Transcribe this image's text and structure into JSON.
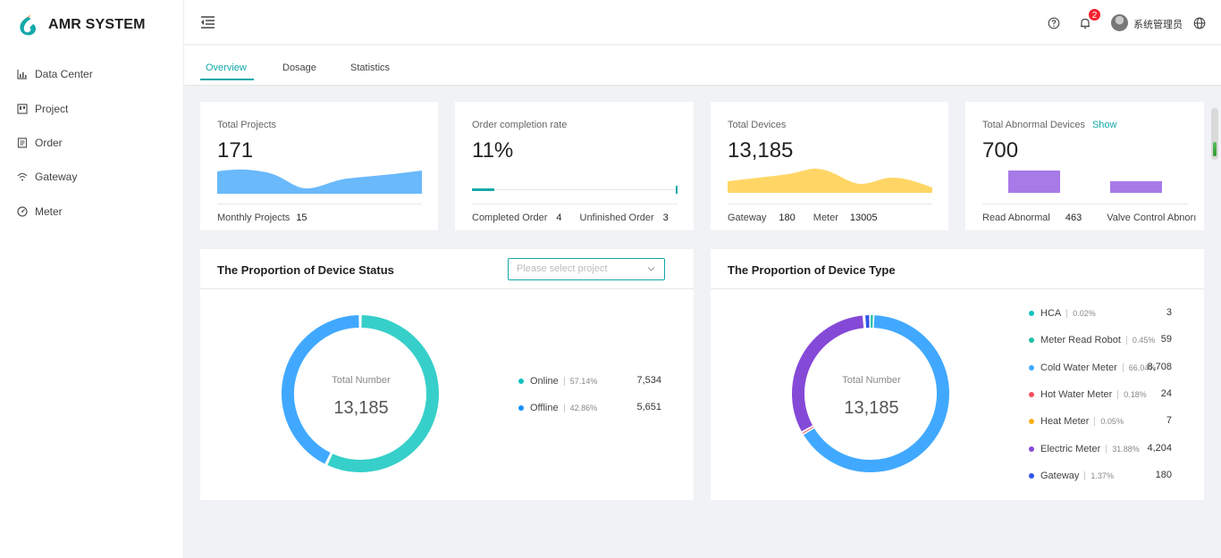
{
  "app": {
    "name": "AMR SYSTEM"
  },
  "sidebar": {
    "items": [
      {
        "label": "Data Center",
        "icon": "bar-chart-icon"
      },
      {
        "label": "Project",
        "icon": "project-icon"
      },
      {
        "label": "Order",
        "icon": "order-icon"
      },
      {
        "label": "Gateway",
        "icon": "wifi-icon"
      },
      {
        "label": "Meter",
        "icon": "gauge-icon"
      }
    ]
  },
  "header": {
    "notification_count": "2",
    "username": "系统管理员"
  },
  "tabs": [
    {
      "label": "Overview",
      "active": true
    },
    {
      "label": "Dosage",
      "active": false
    },
    {
      "label": "Statistics",
      "active": false
    }
  ],
  "stats": [
    {
      "title": "Total Projects",
      "value": "171",
      "footer": [
        {
          "label": "Monthly Projects",
          "value": "15"
        }
      ]
    },
    {
      "title": "Order completion rate",
      "value": "11%",
      "progress": 0.11,
      "footer": [
        {
          "label": "Completed Order",
          "value": "4"
        },
        {
          "label": "Unfinished Order",
          "value": "3"
        }
      ]
    },
    {
      "title": "Total Devices",
      "value": "13,185",
      "footer": [
        {
          "label": "Gateway",
          "value": "180"
        },
        {
          "label": "Meter",
          "value": "13005"
        }
      ]
    },
    {
      "title": "Total Abnormal Devices",
      "show_label": "Show",
      "value": "700",
      "bars": [
        463,
        237
      ],
      "footer": [
        {
          "label": "Read Abnormal",
          "value": "463"
        },
        {
          "label": "Valve Control Abnorı",
          "value": ""
        }
      ]
    }
  ],
  "device_status": {
    "title": "The Proportion of Device Status",
    "select_placeholder": "Please select project",
    "center_label": "Total Number",
    "total": "13,185",
    "legend": [
      {
        "name": "Online",
        "pct": "57.14%",
        "value": "7,534",
        "color": "#36cfc9"
      },
      {
        "name": "Offline",
        "pct": "42.86%",
        "value": "5,651",
        "color": "#40a9ff"
      }
    ]
  },
  "device_type": {
    "title": "The Proportion of Device Type",
    "center_label": "Total Number",
    "total": "13,185",
    "legend": [
      {
        "name": "HCA",
        "pct": "0.02%",
        "value": "3",
        "color": "#13c2c2"
      },
      {
        "name": "Meter Read Robot",
        "pct": "0.45%",
        "value": "59",
        "color": "#20c0a8"
      },
      {
        "name": "Cold Water Meter",
        "pct": "66.04%",
        "value": "8,708",
        "color": "#40a9ff"
      },
      {
        "name": "Hot Water Meter",
        "pct": "0.18%",
        "value": "24",
        "color": "#f5515f"
      },
      {
        "name": "Heat Meter",
        "pct": "0.05%",
        "value": "7",
        "color": "#faad14"
      },
      {
        "name": "Electric Meter",
        "pct": "31.88%",
        "value": "4,204",
        "color": "#8549d8"
      },
      {
        "name": "Gateway",
        "pct": "1.37%",
        "value": "180",
        "color": "#2f54eb"
      }
    ]
  },
  "colors": {
    "accent": "#13a8a8",
    "blue_area": "#69b9fb",
    "yellow_area": "#ffd666",
    "purple_bar": "#a77ae8"
  }
}
